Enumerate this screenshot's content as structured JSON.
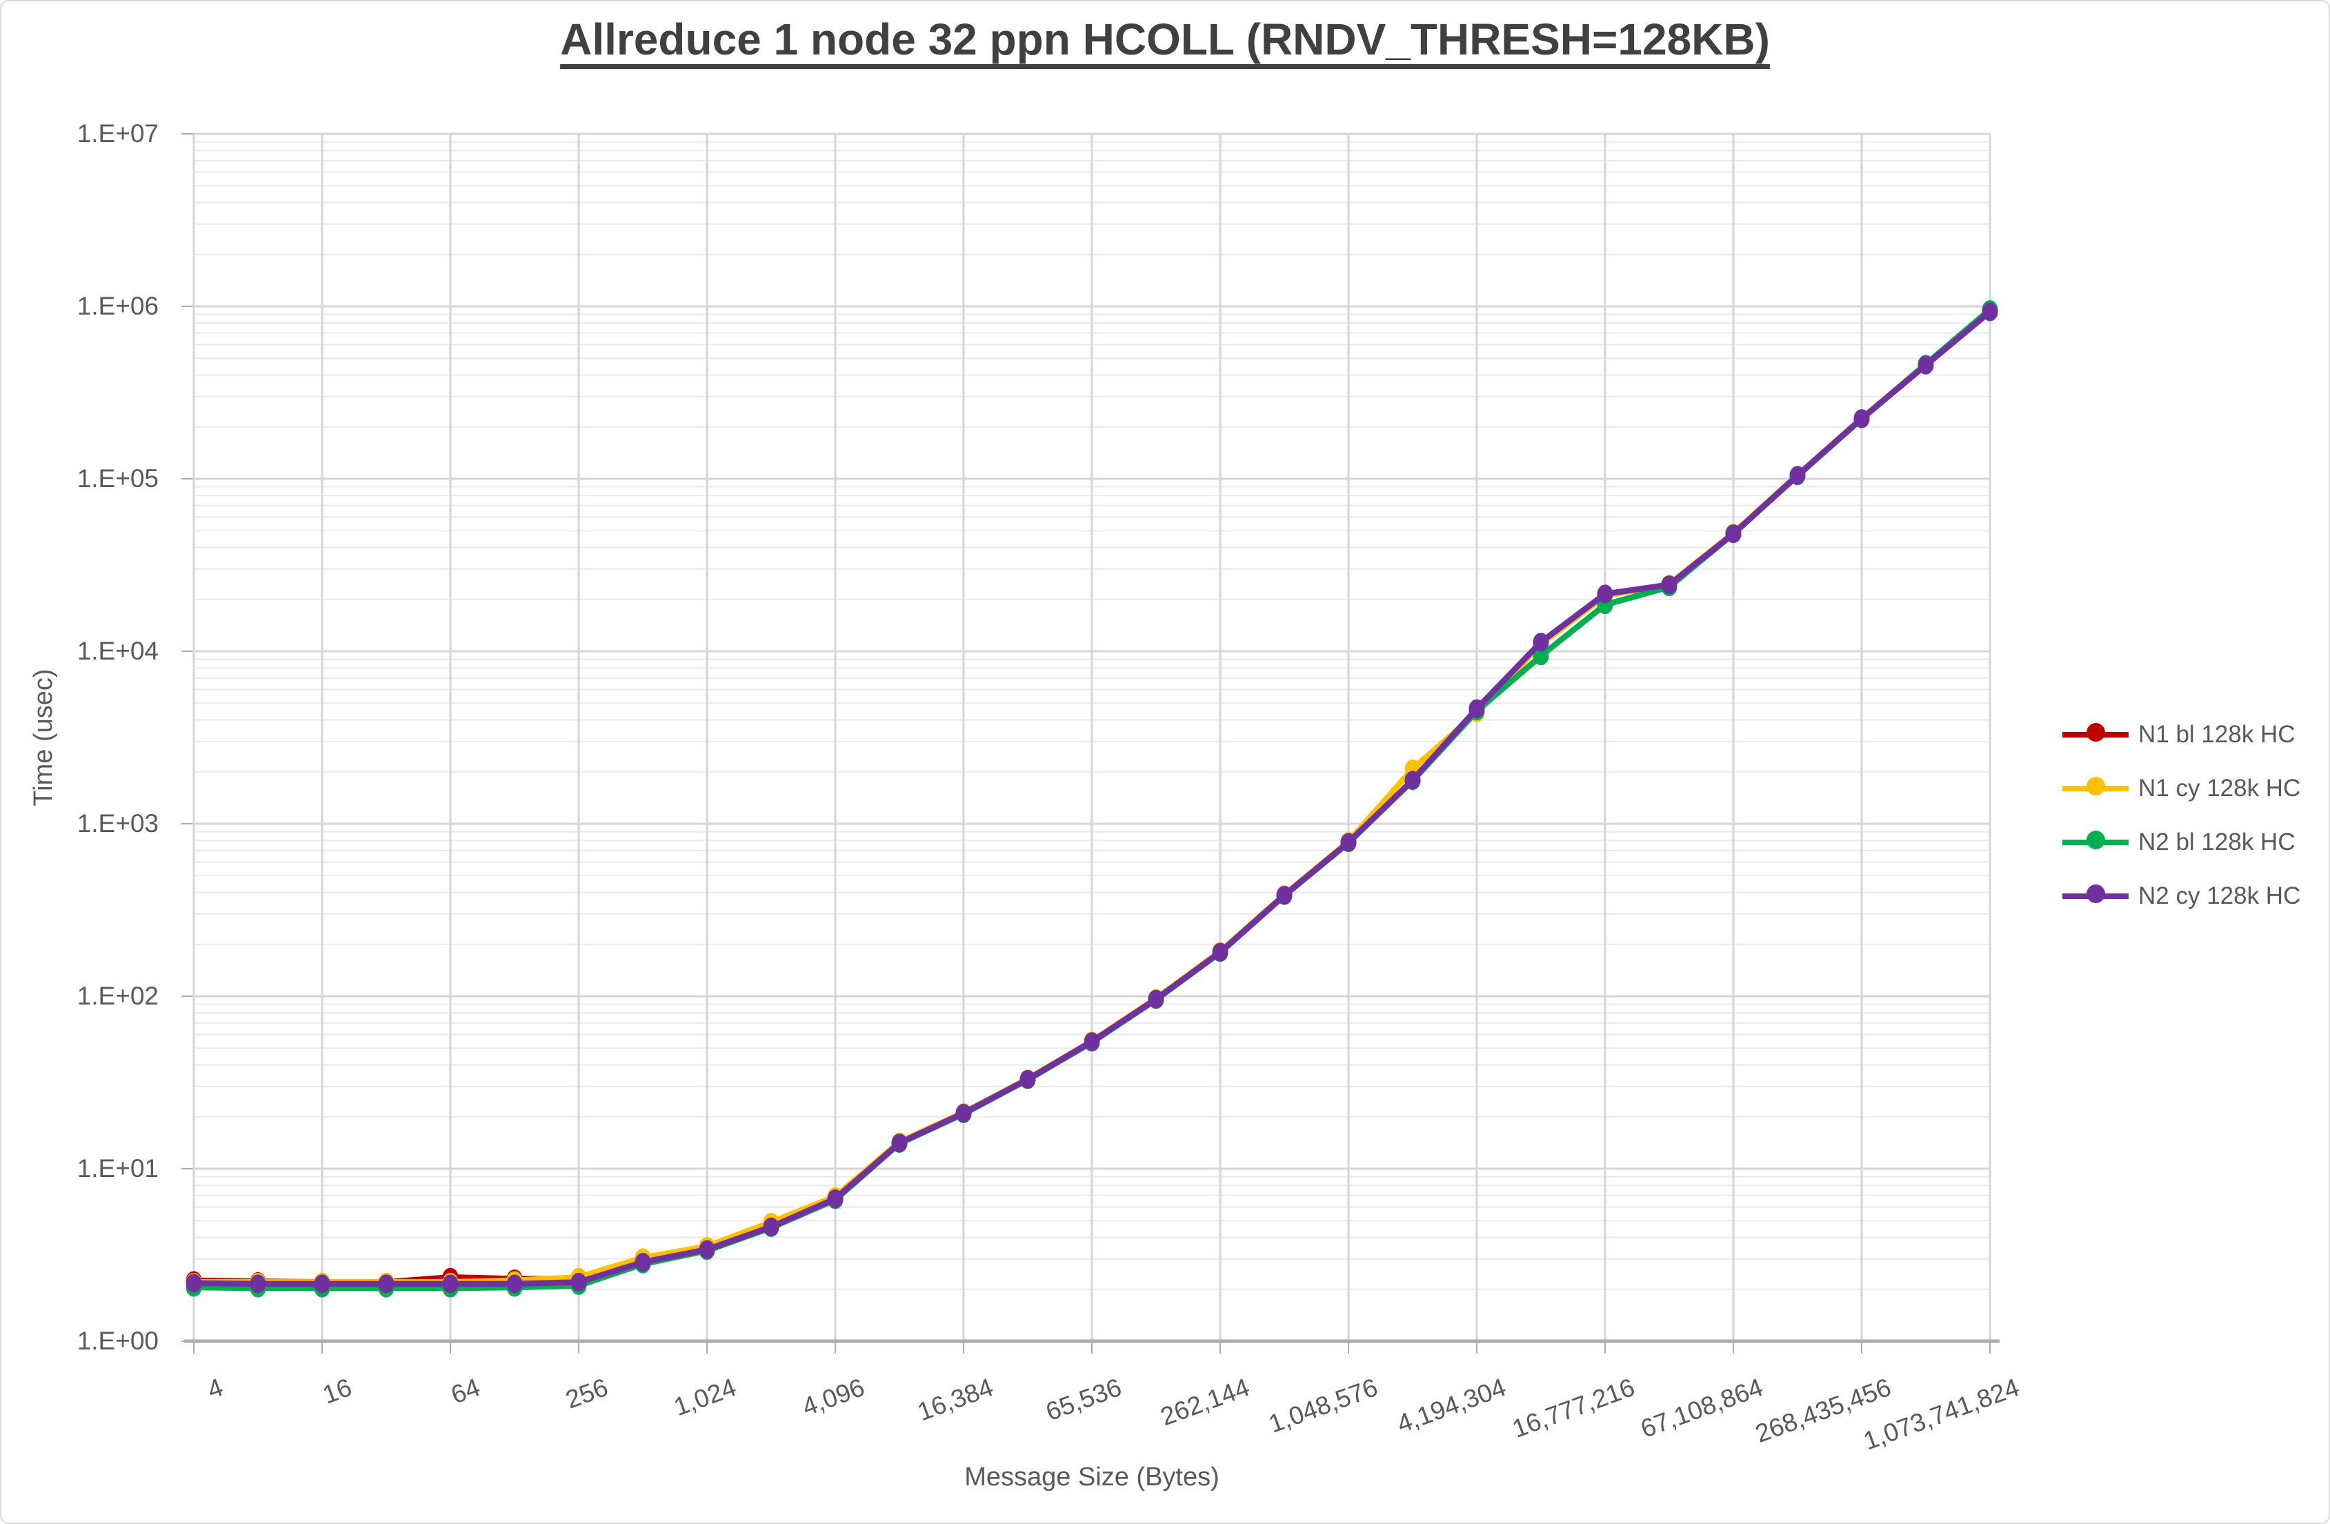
{
  "chart_data": {
    "type": "line",
    "title": "Allreduce 1 node 32 ppn HCOLL (RNDV_THRESH=128KB)",
    "xlabel": "Message Size (Bytes)",
    "ylabel": "Time (usec)",
    "x_scale": "log2",
    "y_scale": "log10",
    "xlim": [
      4,
      1073741824
    ],
    "ylim": [
      1,
      10000000
    ],
    "grid": true,
    "legend_position": "right",
    "x": [
      4,
      8,
      16,
      32,
      64,
      128,
      256,
      512,
      1024,
      2048,
      4096,
      8192,
      16384,
      32768,
      65536,
      131072,
      262144,
      524288,
      1048576,
      2097152,
      4194304,
      8388608,
      16777216,
      33554432,
      67108864,
      134217728,
      268435456,
      536870912,
      1073741824
    ],
    "x_tick_labels": [
      "4",
      "16",
      "64",
      "256",
      "1,024",
      "4,096",
      "16,384",
      "65,536",
      "262,144",
      "1,048,576",
      "4,194,304",
      "16,777,216",
      "67,108,864",
      "268,435,456",
      "1,073,741,824"
    ],
    "y_tick_labels": [
      "1.E+00",
      "1.E+01",
      "1.E+02",
      "1.E+03",
      "1.E+04",
      "1.E+05",
      "1.E+06",
      "1.E+07"
    ],
    "series": [
      {
        "name": "N1 bl 128k HC",
        "color": "#C00000",
        "values": [
          2.25,
          2.22,
          2.2,
          2.2,
          2.35,
          2.3,
          2.3,
          2.9,
          3.45,
          4.65,
          6.75,
          14.2,
          21.0,
          33.0,
          54.5,
          96.0,
          180,
          385,
          778,
          1780,
          4550,
          11100,
          21200,
          24200,
          48200,
          104500,
          223000,
          457000,
          933000
        ]
      },
      {
        "name": "N1 cy 128k HC",
        "color": "#FFC000",
        "values": [
          2.2,
          2.2,
          2.2,
          2.2,
          2.2,
          2.25,
          2.35,
          3.05,
          3.55,
          4.9,
          6.9,
          14.3,
          21.2,
          33.2,
          55.0,
          97.0,
          182,
          388,
          790,
          2080,
          4400,
          11000,
          21000,
          24500,
          48500,
          105000,
          224000,
          459000,
          940000
        ]
      },
      {
        "name": "N2 bl 128k HC",
        "color": "#00B050",
        "values": [
          2.05,
          2.03,
          2.03,
          2.03,
          2.03,
          2.05,
          2.1,
          2.8,
          3.35,
          4.55,
          6.6,
          14.0,
          20.8,
          32.8,
          54.0,
          95.5,
          179,
          383,
          775,
          1775,
          4500,
          9400,
          18600,
          23600,
          48000,
          104000,
          222500,
          462000,
          958000
        ]
      },
      {
        "name": "N2 cy 128k HC",
        "color": "#7030A0",
        "values": [
          2.17,
          2.15,
          2.15,
          2.15,
          2.15,
          2.15,
          2.2,
          2.87,
          3.4,
          4.6,
          6.7,
          14.1,
          21.0,
          33.0,
          54.6,
          96.2,
          180,
          385,
          780,
          1790,
          4650,
          11300,
          21500,
          24300,
          48000,
          104700,
          223400,
          456000,
          929000
        ]
      }
    ],
    "colors": {
      "title_text": "#404040",
      "axis_text": "#595959",
      "grid_major": "#D6D6D6",
      "grid_minor": "#EAEAEA",
      "axis_line": "#ACACAC",
      "background": "#FFFFFF"
    }
  }
}
